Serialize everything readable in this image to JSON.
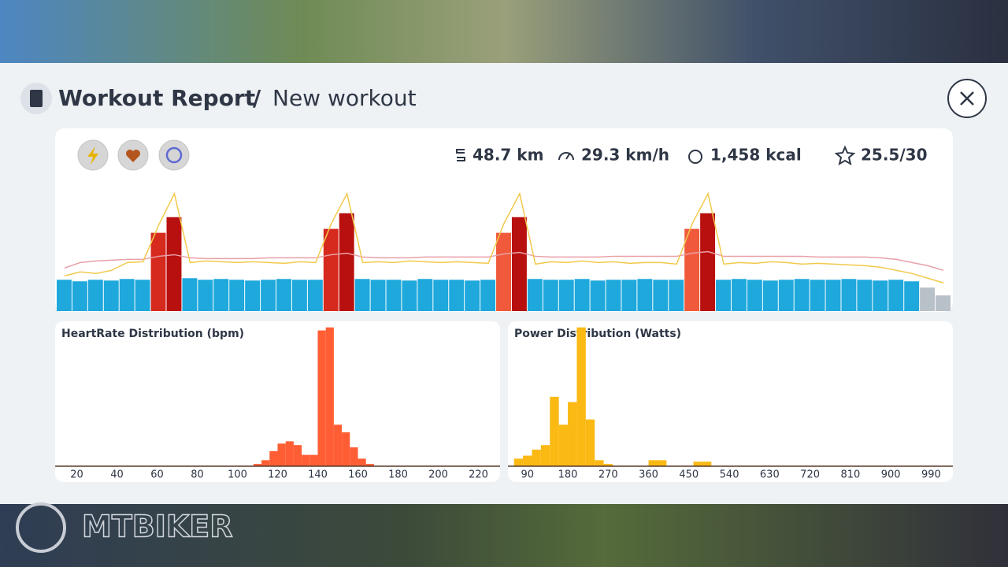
{
  "header": {
    "title": "Workout Report",
    "separator": "/",
    "subtitle": "New workout"
  },
  "stats": {
    "distance": "48.7 km",
    "speed": "29.3 km/h",
    "calories": "1,458 kcal",
    "score": "25.5/30"
  },
  "watermark": "MTBIKER",
  "chart_data": [
    {
      "type": "bar",
      "ylim": [
        0,
        160
      ],
      "values": [
        40,
        38,
        40,
        39,
        41,
        40,
        100,
        120,
        42,
        40,
        41,
        40,
        39,
        40,
        41,
        40,
        40,
        105,
        125,
        41,
        40,
        40,
        39,
        41,
        40,
        40,
        39,
        40,
        100,
        120,
        41,
        40,
        40,
        41,
        39,
        40,
        40,
        41,
        40,
        40,
        105,
        125,
        40,
        41,
        40,
        39,
        40,
        41,
        40,
        40,
        41,
        40,
        39,
        40,
        38,
        30,
        20
      ],
      "colors": [
        "#1ea8dc",
        "#1ea8dc",
        "#1ea8dc",
        "#1ea8dc",
        "#1ea8dc",
        "#1ea8dc",
        "#d62a1e",
        "#b8100e",
        "#1ea8dc",
        "#1ea8dc",
        "#1ea8dc",
        "#1ea8dc",
        "#1ea8dc",
        "#1ea8dc",
        "#1ea8dc",
        "#1ea8dc",
        "#1ea8dc",
        "#d62a1e",
        "#b8100e",
        "#1ea8dc",
        "#1ea8dc",
        "#1ea8dc",
        "#1ea8dc",
        "#1ea8dc",
        "#1ea8dc",
        "#1ea8dc",
        "#1ea8dc",
        "#1ea8dc",
        "#f05a3a",
        "#b8100e",
        "#1ea8dc",
        "#1ea8dc",
        "#1ea8dc",
        "#1ea8dc",
        "#1ea8dc",
        "#1ea8dc",
        "#1ea8dc",
        "#1ea8dc",
        "#1ea8dc",
        "#1ea8dc",
        "#f05a3a",
        "#b8100e",
        "#1ea8dc",
        "#1ea8dc",
        "#1ea8dc",
        "#1ea8dc",
        "#1ea8dc",
        "#1ea8dc",
        "#1ea8dc",
        "#1ea8dc",
        "#1ea8dc",
        "#1ea8dc",
        "#1ea8dc",
        "#1ea8dc",
        "#1ea8dc",
        "#b8c0c8",
        "#b8c0c8"
      ],
      "lines": [
        {
          "color": "#e8a0a8",
          "values": [
            55,
            62,
            64,
            65,
            66,
            66,
            70,
            72,
            68,
            67,
            67,
            67,
            67,
            68,
            68,
            68,
            68,
            72,
            74,
            69,
            68,
            68,
            68,
            69,
            69,
            69,
            69,
            69,
            73,
            75,
            70,
            69,
            69,
            69,
            69,
            70,
            70,
            70,
            70,
            70,
            74,
            76,
            70,
            70,
            70,
            70,
            70,
            70,
            69,
            69,
            69,
            69,
            68,
            66,
            62,
            58,
            52
          ]
        },
        {
          "color": "#f2c94c",
          "values": [
            45,
            50,
            48,
            52,
            62,
            63,
            110,
            150,
            62,
            64,
            63,
            62,
            63,
            62,
            61,
            63,
            62,
            112,
            150,
            62,
            63,
            62,
            64,
            63,
            62,
            63,
            62,
            61,
            112,
            150,
            60,
            63,
            62,
            64,
            62,
            63,
            61,
            62,
            62,
            60,
            112,
            150,
            60,
            62,
            61,
            63,
            62,
            60,
            61,
            60,
            59,
            58,
            56,
            52,
            48,
            42,
            36
          ]
        }
      ]
    },
    {
      "type": "histogram",
      "title": "HeartRate Distribution (bpm)",
      "color": "#ff5e35",
      "bins": [
        108,
        112,
        116,
        120,
        124,
        128,
        132,
        136,
        140,
        144,
        148,
        152,
        156,
        160,
        164,
        168
      ],
      "values": [
        3,
        8,
        20,
        30,
        33,
        28,
        15,
        15,
        180,
        184,
        55,
        45,
        25,
        10,
        3
      ],
      "xlim": [
        10,
        230
      ],
      "ylim": [
        0,
        190
      ],
      "xticks": [
        20,
        40,
        60,
        80,
        100,
        120,
        140,
        160,
        180,
        200,
        220
      ]
    },
    {
      "type": "histogram",
      "title": "Power Distribution (Watts)",
      "color": "#fbb914",
      "bins": [
        60,
        80,
        100,
        120,
        140,
        160,
        180,
        200,
        220,
        240,
        260,
        280,
        300,
        320,
        340,
        360,
        380,
        400,
        420,
        440,
        460,
        480,
        500
      ],
      "values": [
        10,
        14,
        22,
        28,
        92,
        55,
        85,
        184,
        62,
        8,
        3,
        0,
        0,
        0,
        0,
        8,
        8,
        0,
        0,
        0,
        6,
        6
      ],
      "xlim": [
        50,
        1035
      ],
      "ylim": [
        0,
        190
      ],
      "xticks": [
        90,
        180,
        270,
        360,
        450,
        540,
        630,
        720,
        810,
        900,
        990
      ]
    }
  ]
}
